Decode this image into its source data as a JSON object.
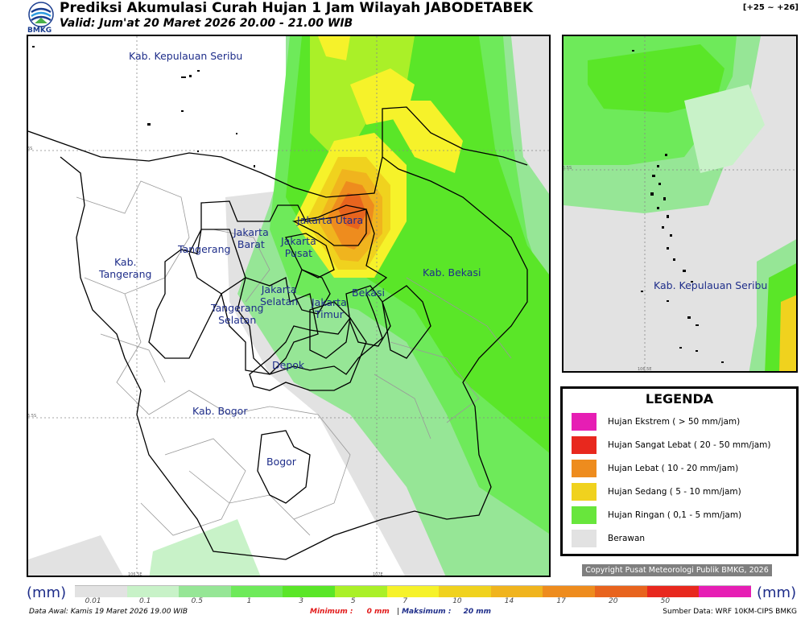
{
  "header": {
    "logo_text": "BMKG",
    "title": "Prediksi Akumulasi Curah Hujan 1 Jam Wilayah JABODETABEK",
    "valid": "Valid: Jum'at 20 Maret 2026 20.00 - 21.00 WIB",
    "range_tag": "[+25 ~ +26]"
  },
  "main_map": {
    "regions": [
      "Kab. Kepulauan Seribu",
      "Kab.\nTangerang",
      "Tangerang",
      "Jakarta\nBarat",
      "Jakarta Utara",
      "Jakarta\nPusat",
      "Jakarta\nSelatan",
      "Jakarta\nTimur",
      "Bekasi",
      "Kab. Bekasi",
      "Tangerang\nSelatan",
      "Depok",
      "Kab. Bogor",
      "Bogor"
    ],
    "coords": {
      "lat_6s": "6S",
      "lat_65s": "6.5S",
      "lon_1065": "106.5E",
      "lon_107": "107E"
    }
  },
  "inset_map": {
    "region": "Kab. Kepulauan Seribu",
    "coords": {
      "lat": "5.5S",
      "lon": "106.5E"
    }
  },
  "legend": {
    "title": "LEGENDA",
    "items": [
      {
        "label": "Hujan Ekstrem ( > 50 mm/jam)",
        "color": "#e61eb4"
      },
      {
        "label": "Hujan Sangat Lebat ( 20 - 50 mm/jam)",
        "color": "#e8281e"
      },
      {
        "label": "Hujan Lebat ( 10 - 20 mm/jam)",
        "color": "#ee8c1e"
      },
      {
        "label": "Hujan Sedang ( 5 - 10 mm/jam)",
        "color": "#f0d21e"
      },
      {
        "label": "Hujan Ringan ( 0,1 - 5 mm/jam)",
        "color": "#68e63c"
      },
      {
        "label": "Berawan",
        "color": "#e2e2e2"
      }
    ]
  },
  "copyright": "Copyright Pusat Meteorologi Publik BMKG, 2026",
  "scale": {
    "unit": "(mm)",
    "ticks": [
      "0.01",
      "0.1",
      "0.5",
      "1",
      "3",
      "5",
      "7",
      "10",
      "14",
      "17",
      "20",
      "50"
    ],
    "colors": [
      "#e2e2e2",
      "#c8f2c8",
      "#96e696",
      "#6eea5a",
      "#5ae628",
      "#aaf028",
      "#f6f22a",
      "#f0d21e",
      "#f0b41e",
      "#ee8c1e",
      "#e8641e",
      "#e8281e",
      "#e61eb4"
    ]
  },
  "footer": {
    "data_awal": "Data Awal: Kamis 19 Maret 2026 19.00 WIB",
    "minimum_label": "Minimum :",
    "minimum_value": "0 mm",
    "separator": "|",
    "maximum_label": "Maksimum :",
    "maximum_value": "20 mm",
    "source": "Sumber Data: WRF 10KM-CIPS BMKG"
  },
  "colors": {
    "label_blue": "#1f2e8a",
    "rain_light": "#5ae628",
    "rain_medium": "#f0d21e",
    "rain_heavy": "#ee8c1e",
    "rain_very_heavy": "#e8281e",
    "cloudy": "#e2e2e2"
  }
}
